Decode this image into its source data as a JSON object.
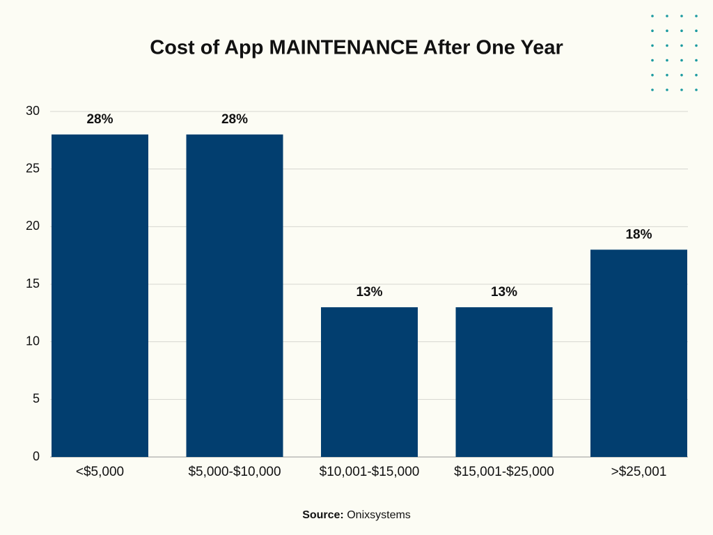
{
  "chart_data": {
    "type": "bar",
    "title": "Cost of App MAINTENANCE After One Year",
    "categories": [
      "<$5,000",
      "$5,000-$10,000",
      "$10,001-$15,000",
      "$15,001-$25,000",
      ">$25,001"
    ],
    "values": [
      28,
      28,
      13,
      13,
      18
    ],
    "value_labels": [
      "28%",
      "28%",
      "13%",
      "13%",
      "18%"
    ],
    "color": "#023e6f",
    "ylim": [
      0,
      30
    ],
    "yticks": [
      0,
      5,
      10,
      15,
      20,
      25,
      30
    ],
    "grid": true,
    "source_label": "Source:",
    "source": "Onixsystems"
  }
}
